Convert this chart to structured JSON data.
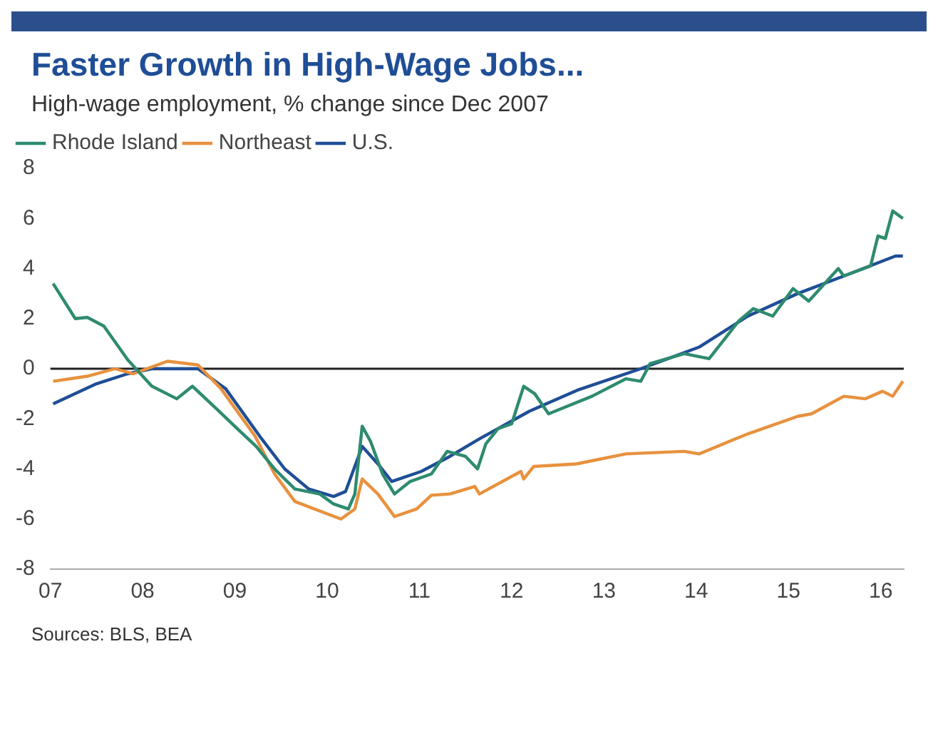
{
  "chart_data": {
    "type": "line",
    "title": "Faster Growth in High-Wage Jobs...",
    "subtitle": "High-wage employment, % change since Dec 2007",
    "annotations": [
      "Sources: BLS, BEA"
    ],
    "series": [
      {
        "name": "Rhode Island",
        "color": "#2e8b6f",
        "x": [
          2007.03,
          2007.27,
          2007.4,
          2007.58,
          2007.84,
          2008.1,
          2008.37,
          2008.54,
          2008.8,
          2009.0,
          2009.23,
          2009.43,
          2009.65,
          2009.92,
          2010.07,
          2010.23,
          2010.3,
          2010.38,
          2010.47,
          2010.6,
          2010.73,
          2010.9,
          2011.13,
          2011.3,
          2011.5,
          2011.63,
          2011.72,
          2011.85,
          2012.0,
          2012.13,
          2012.25,
          2012.4,
          2012.6,
          2012.87,
          2013.24,
          2013.4,
          2013.5,
          2013.87,
          2014.14,
          2014.46,
          2014.62,
          2014.83,
          2015.05,
          2015.22,
          2015.54,
          2015.6,
          2015.89,
          2015.97,
          2016.05,
          2016.13,
          2016.24
        ],
        "values": [
          3.4,
          2.0,
          2.05,
          1.7,
          0.35,
          -0.7,
          -1.2,
          -0.7,
          -1.6,
          -2.3,
          -3.1,
          -4.0,
          -4.8,
          -5.0,
          -5.4,
          -5.6,
          -5.0,
          -2.3,
          -2.9,
          -4.2,
          -5.0,
          -4.5,
          -4.2,
          -3.3,
          -3.5,
          -4.0,
          -3.0,
          -2.4,
          -2.2,
          -0.7,
          -1.0,
          -1.8,
          -1.5,
          -1.1,
          -0.4,
          -0.5,
          0.2,
          0.6,
          0.4,
          1.9,
          2.4,
          2.1,
          3.2,
          2.7,
          4.0,
          3.7,
          4.1,
          5.3,
          5.2,
          6.3,
          6.0
        ]
      },
      {
        "name": "Northeast",
        "color": "#e8913e",
        "x": [
          2007.03,
          2007.4,
          2007.7,
          2007.9,
          2008.27,
          2008.6,
          2008.85,
          2009.22,
          2009.43,
          2009.65,
          2009.97,
          2010.15,
          2010.3,
          2010.38,
          2010.55,
          2010.73,
          2010.97,
          2011.13,
          2011.33,
          2011.6,
          2011.65,
          2012.1,
          2012.13,
          2012.24,
          2012.7,
          2013.24,
          2013.87,
          2014.03,
          2014.56,
          2015.1,
          2015.25,
          2015.6,
          2015.83,
          2016.02,
          2016.13,
          2016.24
        ],
        "values": [
          -0.5,
          -0.3,
          0,
          -0.2,
          0.3,
          0.15,
          -0.8,
          -2.7,
          -4.2,
          -5.3,
          -5.75,
          -6.0,
          -5.6,
          -4.4,
          -5.0,
          -5.9,
          -5.6,
          -5.05,
          -5.0,
          -4.7,
          -5.0,
          -4.1,
          -4.4,
          -3.9,
          -3.8,
          -3.4,
          -3.3,
          -3.4,
          -2.6,
          -1.9,
          -1.8,
          -1.1,
          -1.2,
          -0.9,
          -1.1,
          -0.5
        ]
      },
      {
        "name": "U.S.",
        "color": "#1f4e96",
        "x": [
          2007.03,
          2007.5,
          2007.84,
          2008.1,
          2008.6,
          2008.9,
          2009.27,
          2009.54,
          2009.8,
          2010.07,
          2010.2,
          2010.38,
          2010.55,
          2010.7,
          2011.02,
          2011.33,
          2011.65,
          2012.19,
          2012.71,
          2013.4,
          2014.03,
          2014.56,
          2015.1,
          2015.6,
          2016.16,
          2016.24
        ],
        "values": [
          -1.4,
          -0.6,
          -0.2,
          0,
          0,
          -0.8,
          -2.7,
          -4.0,
          -4.8,
          -5.1,
          -4.9,
          -3.1,
          -3.8,
          -4.5,
          -4.1,
          -3.5,
          -2.8,
          -1.7,
          -0.86,
          0,
          0.86,
          2.1,
          3.0,
          3.7,
          4.5,
          4.5
        ]
      }
    ],
    "xlim": [
      2007,
      2016.25
    ],
    "xticks": [
      {
        "value": 2007,
        "label": "07"
      },
      {
        "value": 2008,
        "label": "08"
      },
      {
        "value": 2009,
        "label": "09"
      },
      {
        "value": 2010,
        "label": "10"
      },
      {
        "value": 2011,
        "label": "11"
      },
      {
        "value": 2012,
        "label": "12"
      },
      {
        "value": 2013,
        "label": "13"
      },
      {
        "value": 2014,
        "label": "14"
      },
      {
        "value": 2015,
        "label": "15"
      },
      {
        "value": 2016,
        "label": "16"
      }
    ],
    "ylim": [
      -8,
      8
    ],
    "yticks": [
      -8,
      -6,
      -4,
      -2,
      0,
      2,
      4,
      6,
      8
    ],
    "ref_lines": [
      {
        "axis": "y",
        "value": 0,
        "color": "#222222"
      }
    ],
    "grid": false,
    "legend": "top left",
    "marker": "none",
    "line_style": "solid"
  }
}
